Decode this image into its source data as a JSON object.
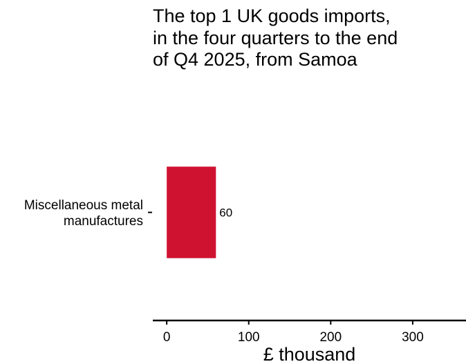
{
  "chart_data": {
    "type": "bar",
    "orientation": "horizontal",
    "title": "The top 1 UK goods imports, in the four quarters to the end of Q4 2025, from Samoa",
    "categories": [
      "Miscellaneous metal manufactures"
    ],
    "category_lines": [
      [
        "Miscellaneous metal",
        "manufactures"
      ]
    ],
    "values": [
      60
    ],
    "data_labels": [
      "60"
    ],
    "xlabel": "£ thousand",
    "ylabel": "",
    "xlim": [
      -17,
      365
    ],
    "xticks": [
      0,
      100,
      200,
      300
    ],
    "xtick_labels": [
      "0",
      "100",
      "200",
      "300"
    ],
    "grid": false,
    "legend": "none",
    "bar_color": "#cf1230"
  }
}
